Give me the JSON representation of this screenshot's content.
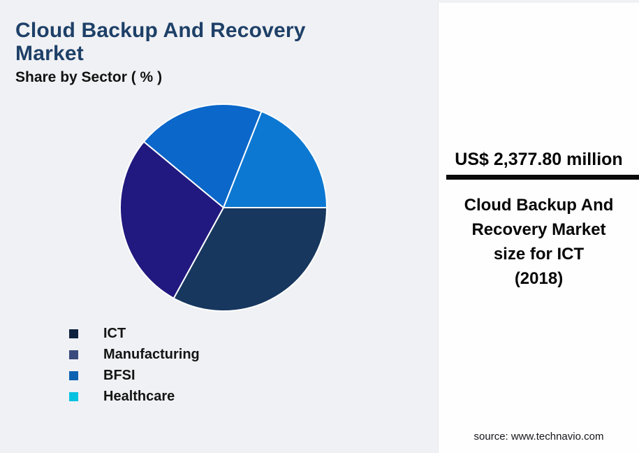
{
  "page": {
    "background_color": "#F0F1F4",
    "panel_background_color": "#FEFEFE"
  },
  "header": {
    "title": "Cloud Backup And Recovery Market",
    "title_color": "#1E4068",
    "subtitle": "Share by Sector ( % )"
  },
  "chart_data": {
    "type": "pie",
    "title": "Cloud Backup And Recovery Market",
    "subtitle": "Share by Sector ( % )",
    "categories": [
      "ICT",
      "Manufacturing",
      "BFSI",
      "Healthcare"
    ],
    "values": [
      33,
      28,
      20,
      19
    ],
    "unit": "%",
    "labels_shown": false,
    "start_angle_deg": 0,
    "direction": "clockwise",
    "slice_colors": [
      "#17375E",
      "#21197F",
      "#0B67C9",
      "#0C78D2"
    ],
    "legend_colors": [
      "#0E2240",
      "#3A4A7D",
      "#0A62B1",
      "#06C2E1"
    ],
    "slice_border_color": "#FFFFFF",
    "legend_position": "bottom-left"
  },
  "info_panel": {
    "value": "US$ 2,377.80 million",
    "divider_color": "#0A0A0A",
    "description_lines": [
      "Cloud Backup And",
      "Recovery Market",
      "size for ICT",
      "(2018)"
    ]
  },
  "footer": {
    "source": "source: www.technavio.com"
  }
}
